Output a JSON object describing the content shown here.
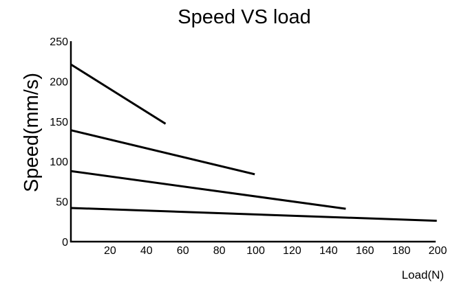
{
  "chart_data": {
    "type": "line",
    "title": "Speed VS load",
    "xlabel": "Load(N)",
    "ylabel": "Speed(mm/s)",
    "xlim": [
      0,
      200
    ],
    "ylim": [
      0,
      250
    ],
    "x_ticks": [
      20,
      40,
      60,
      80,
      100,
      120,
      140,
      160,
      180,
      200
    ],
    "y_ticks": [
      0,
      50,
      100,
      150,
      200,
      250
    ],
    "grid": false,
    "legend": "none",
    "line_color": "#000000",
    "series": [
      {
        "points": [
          [
            0,
            221
          ],
          [
            52,
            147
          ]
        ]
      },
      {
        "points": [
          [
            0,
            139
          ],
          [
            101,
            84
          ]
        ]
      },
      {
        "points": [
          [
            0,
            88
          ],
          [
            151,
            41
          ]
        ]
      },
      {
        "points": [
          [
            0,
            42
          ],
          [
            201,
            26
          ]
        ]
      }
    ]
  }
}
